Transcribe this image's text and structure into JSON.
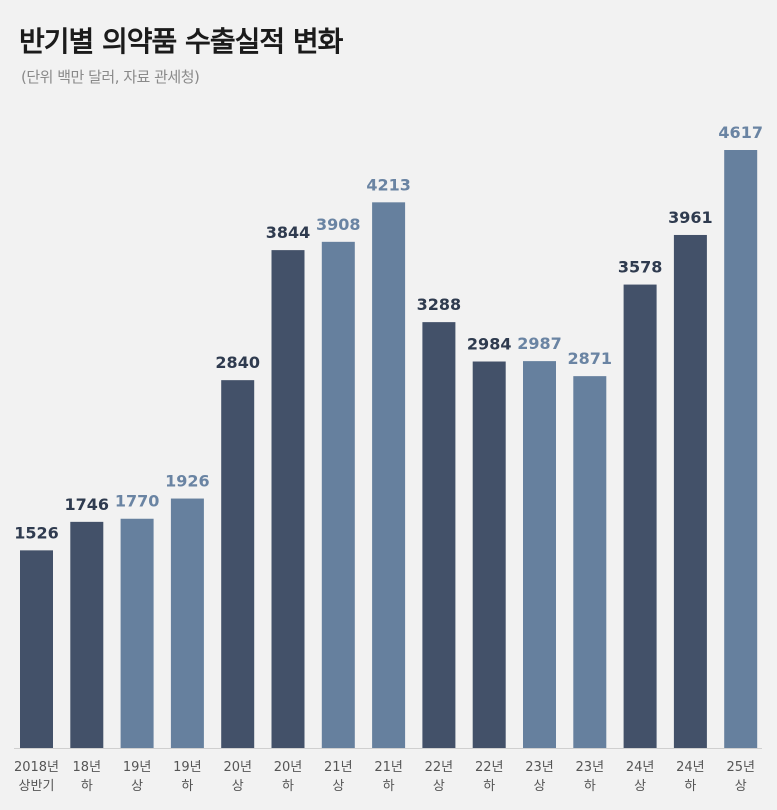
{
  "title": "반기별 의약품 수출실적 변화",
  "subtitle": "(단위 백만 달러, 자료 관세청)",
  "colors": {
    "dark": "#435169",
    "light": "#66809e",
    "background": "#f2f2f2",
    "axis": "#cfcfcf",
    "tick_text": "#555555"
  },
  "chart_data": {
    "type": "bar",
    "title": "반기별 의약품 수출실적 변화",
    "subtitle": "(단위 백만 달러, 자료 관세청)",
    "xlabel": "",
    "ylabel": "",
    "grid": false,
    "ylim": [
      0,
      4617
    ],
    "categories": [
      {
        "line1": "2018년",
        "line2": "상반기"
      },
      {
        "line1": "18년",
        "line2": "하"
      },
      {
        "line1": "19년",
        "line2": "상"
      },
      {
        "line1": "19년",
        "line2": "하"
      },
      {
        "line1": "20년",
        "line2": "상"
      },
      {
        "line1": "20년",
        "line2": "하"
      },
      {
        "line1": "21년",
        "line2": "상"
      },
      {
        "line1": "21년",
        "line2": "하"
      },
      {
        "line1": "22년",
        "line2": "상"
      },
      {
        "line1": "22년",
        "line2": "하"
      },
      {
        "line1": "23년",
        "line2": "상"
      },
      {
        "line1": "23년",
        "line2": "하"
      },
      {
        "line1": "24년",
        "line2": "상"
      },
      {
        "line1": "24년",
        "line2": "하"
      },
      {
        "line1": "25년",
        "line2": "상"
      }
    ],
    "values": [
      1526,
      1746,
      1770,
      1926,
      2840,
      3844,
      3908,
      4213,
      3288,
      2984,
      2987,
      2871,
      3578,
      3961,
      4617
    ],
    "bar_colors": [
      "dark",
      "dark",
      "light",
      "light",
      "dark",
      "dark",
      "light",
      "light",
      "dark",
      "dark",
      "light",
      "light",
      "dark",
      "dark",
      "light"
    ]
  }
}
